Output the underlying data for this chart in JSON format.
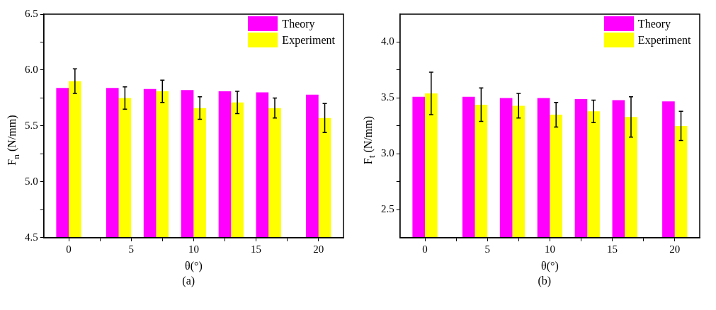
{
  "chart_data": [
    {
      "type": "bar",
      "x": [
        0,
        4,
        7,
        10,
        13,
        16,
        20
      ],
      "xlabel": "θ(°)",
      "ylabel": "F$_{n}$ (N/mm)",
      "legend": "top right",
      "annotations": [
        "(a)"
      ],
      "series": [
        {
          "name": "Theory",
          "color": "#ff00ff",
          "values": [
            5.84,
            5.84,
            5.83,
            5.82,
            5.81,
            5.8,
            5.78
          ]
        },
        {
          "name": "Experiment",
          "color": "#ffff00",
          "values": [
            5.9,
            5.75,
            5.81,
            5.66,
            5.71,
            5.66,
            5.57
          ],
          "errors": [
            0.11,
            0.1,
            0.1,
            0.1,
            0.1,
            0.09,
            0.13
          ]
        }
      ],
      "xlim": [
        -2,
        22
      ],
      "xticks": [
        0,
        {
          "value": 2.5,
          "label": null
        },
        5,
        {
          "value": 7.5,
          "label": null
        },
        10,
        {
          "value": 12.5,
          "label": null
        },
        15,
        {
          "value": 17.5,
          "label": null
        },
        20
      ],
      "ylim": [
        4.5,
        6.5
      ],
      "yticks": [
        4.5,
        {
          "value": 4.75,
          "label": null
        },
        {
          "value": 5,
          "label": "5.0"
        },
        {
          "value": 5.25,
          "label": null
        },
        5.5,
        {
          "value": 5.75,
          "label": null
        },
        {
          "value": 6,
          "label": "6.0"
        },
        {
          "value": 6.25,
          "label": null
        },
        6.5
      ]
    },
    {
      "type": "bar",
      "x": [
        0,
        4,
        7,
        10,
        13,
        16,
        20
      ],
      "xlabel": "θ(°)",
      "ylabel": "F$_{t}$ (N/mm)",
      "legend": "top right",
      "annotations": [
        "(b)"
      ],
      "series": [
        {
          "name": "Theory",
          "color": "#ff00ff",
          "values": [
            3.51,
            3.51,
            3.5,
            3.5,
            3.49,
            3.48,
            3.47
          ]
        },
        {
          "name": "Experiment",
          "color": "#ffff00",
          "values": [
            3.54,
            3.44,
            3.43,
            3.35,
            3.38,
            3.33,
            3.25
          ],
          "errors": [
            0.19,
            0.15,
            0.11,
            0.11,
            0.1,
            0.18,
            0.13
          ]
        }
      ],
      "xlim": [
        -2,
        22
      ],
      "xticks": [
        0,
        {
          "value": 2.5,
          "label": null
        },
        5,
        {
          "value": 7.5,
          "label": null
        },
        10,
        {
          "value": 12.5,
          "label": null
        },
        15,
        {
          "value": 17.5,
          "label": null
        },
        20
      ],
      "ylim": [
        2.25,
        4.25
      ],
      "yticks": [
        2.5,
        {
          "value": 2.75,
          "label": null
        },
        3.5,
        {
          "value": 3,
          "label": "3.0"
        },
        {
          "value": 3.25,
          "label": null
        },
        {
          "value": 3.75,
          "label": null
        },
        {
          "value": 4,
          "label": "4.0"
        }
      ]
    }
  ]
}
